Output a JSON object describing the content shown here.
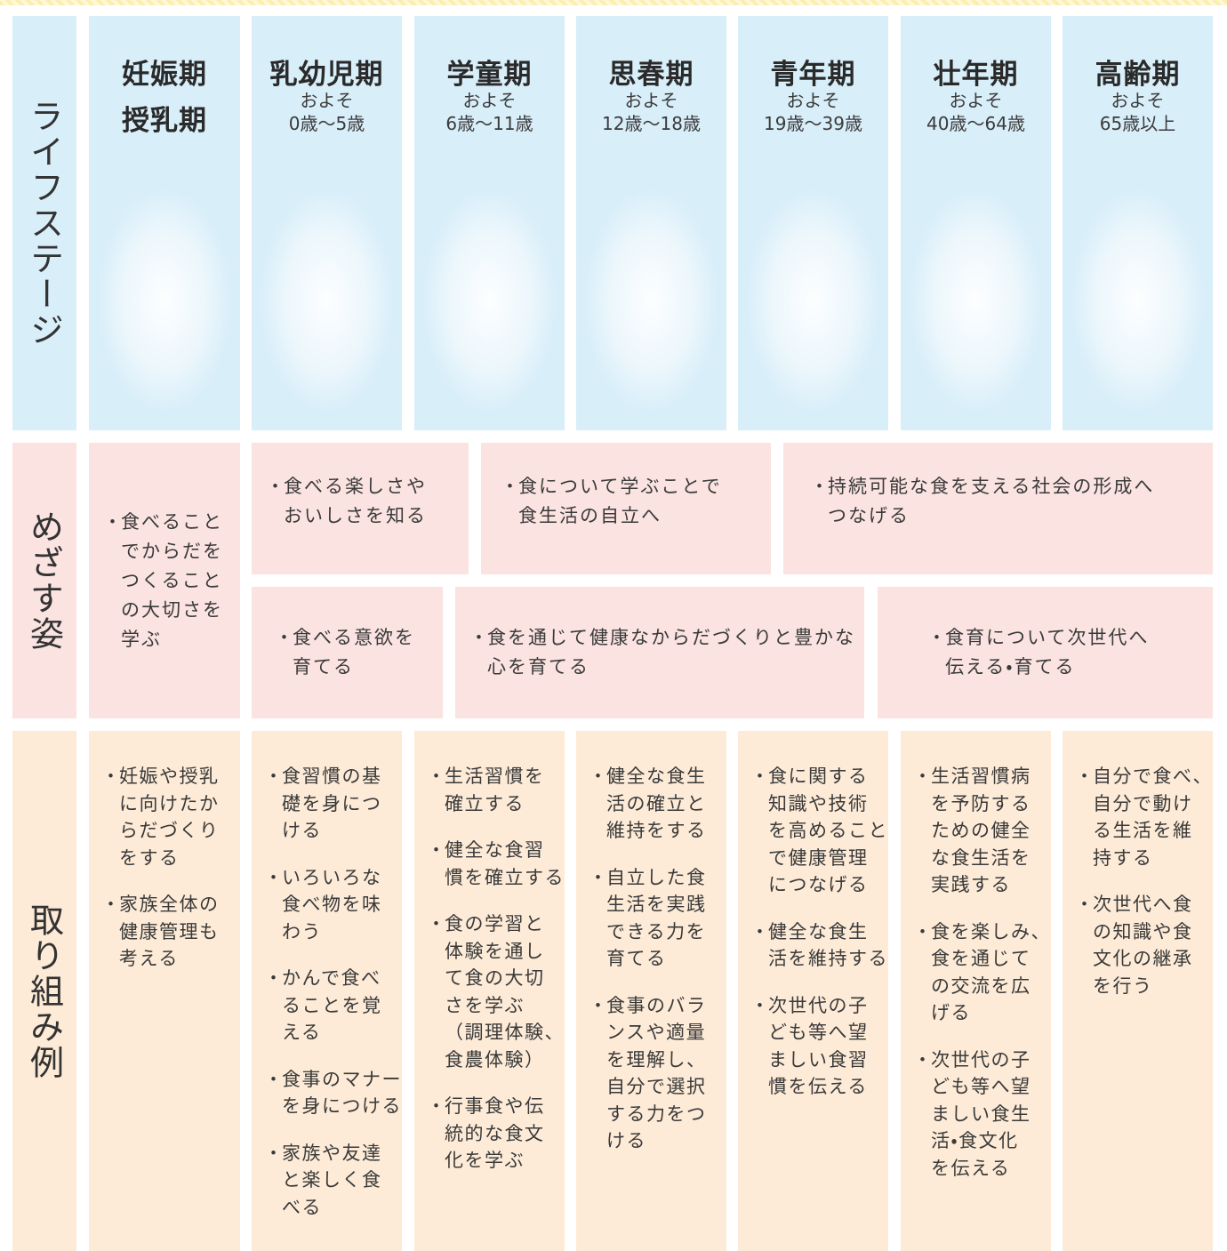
{
  "row_headers": [
    "ライフステージ",
    "めざす姿",
    "取り組み例"
  ],
  "stages": [
    {
      "name": [
        "妊娠期",
        "授乳期"
      ]
    },
    {
      "name": [
        "乳幼児期"
      ],
      "note": "およそ",
      "age": "0歳～5歳"
    },
    {
      "name": [
        "学童期"
      ],
      "note": "およそ",
      "age": "6歳～11歳"
    },
    {
      "name": [
        "思春期"
      ],
      "note": "およそ",
      "age": "12歳～18歳"
    },
    {
      "name": [
        "青年期"
      ],
      "note": "およそ",
      "age": "19歳～39歳"
    },
    {
      "name": [
        "壮年期"
      ],
      "note": "およそ",
      "age": "40歳～64歳"
    },
    {
      "name": [
        "高齢期"
      ],
      "note": "およそ",
      "age": "65歳以上"
    }
  ],
  "goals": [
    {
      "lines": [
        "食べること",
        "でからだを",
        "つくること",
        "の大切さを",
        "学ぶ"
      ]
    },
    {
      "lines": [
        "食べる楽しさや",
        "おいしさを知る"
      ]
    },
    {
      "lines": [
        "食について学ぶことで",
        "食生活の自立へ"
      ]
    },
    {
      "lines": [
        "持続可能な食を支える社会の形成へ",
        "つなげる"
      ]
    },
    {
      "lines": [
        "食べる意欲を",
        "育てる"
      ]
    },
    {
      "lines": [
        "食を通じて健康なからだづくりと豊かな",
        "心を育てる"
      ]
    },
    {
      "lines": [
        "食育について次世代へ",
        "伝える・育てる"
      ]
    }
  ],
  "actions": [
    {
      "items": [
        [
          "妊娠や授乳",
          "に向けたか",
          "らだづくり",
          "をする"
        ],
        [
          "家族全体の",
          "健康管理も",
          "考える"
        ]
      ]
    },
    {
      "items": [
        [
          "食習慣の基",
          "礎を身につ",
          "ける"
        ],
        [
          "いろいろな",
          "食べ物を味",
          "わう"
        ],
        [
          "かんで食べ",
          "ることを覚",
          "える"
        ],
        [
          "食事のマナー",
          "を身につける"
        ],
        [
          "家族や友達",
          "と楽しく食",
          "べる"
        ]
      ]
    },
    {
      "items": [
        [
          "生活習慣を",
          "確立する"
        ],
        [
          "健全な食習",
          "慣を確立する"
        ],
        [
          "食の学習と",
          "体験を通し",
          "て食の大切",
          "さを学ぶ",
          "（調理体験、",
          "食農体験）"
        ],
        [
          "行事食や伝",
          "統的な食文",
          "化を学ぶ"
        ]
      ]
    },
    {
      "items": [
        [
          "健全な食生",
          "活の確立と",
          "維持をする"
        ],
        [
          "自立した食",
          "生活を実践",
          "できる力を",
          "育てる"
        ],
        [
          "食事のバラ",
          "ンスや適量",
          "を理解し、",
          "自分で選択",
          "する力をつ",
          "ける"
        ]
      ]
    },
    {
      "items": [
        [
          "食に関する",
          "知識や技術",
          "を高めること",
          "で健康管理",
          "につなげる"
        ],
        [
          "健全な食生",
          "活を維持する"
        ],
        [
          "次世代の子",
          "ども等へ望",
          "ましい食習",
          "慣を伝える"
        ]
      ]
    },
    {
      "items": [
        [
          "生活習慣病",
          "を予防する",
          "ための健全",
          "な食生活を",
          "実践する"
        ],
        [
          "食を楽しみ、",
          "食を通じて",
          "の交流を広",
          "げる"
        ],
        [
          "次世代の子",
          "ども等へ望",
          "ましい食生",
          "活・食文化",
          "を伝える"
        ]
      ]
    },
    {
      "items": [
        [
          "自分で食べ、",
          "自分で動け",
          "る生活を維",
          "持する"
        ],
        [
          "次世代へ食",
          "の知識や食",
          "文化の継承",
          "を行う"
        ]
      ]
    }
  ]
}
